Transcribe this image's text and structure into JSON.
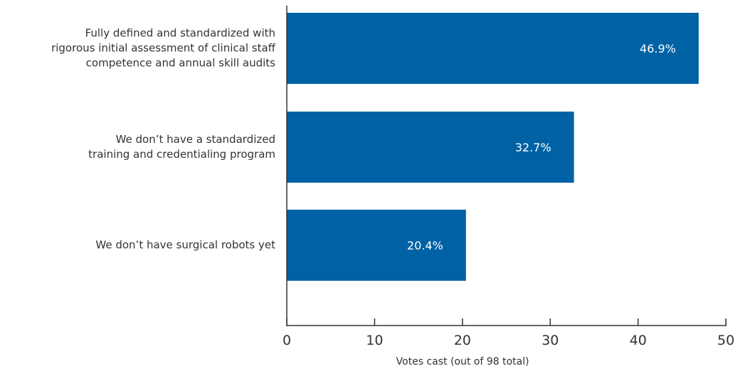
{
  "chart_data": {
    "type": "bar",
    "orientation": "horizontal",
    "categories": [
      "Fully defined and standardized with\nrigorous initial assessment of clinical staff\ncompetence and annual skill audits",
      "We don’t have a standardized\ntraining and credentialing program",
      "We don’t have surgical robots yet"
    ],
    "values": [
      46.9,
      32.7,
      20.4
    ],
    "data_labels": [
      "46.9%",
      "32.7%",
      "20.4%"
    ],
    "xlabel": "Votes cast (out of 98 total)",
    "xlim": [
      0,
      50
    ],
    "xticks": [
      0,
      10,
      20,
      30,
      40,
      50
    ],
    "grid": false,
    "legend": "none",
    "colors": {
      "bar": "#0062A4",
      "bar_label": "#ffffff",
      "axis": "#333333",
      "text": "#333333"
    }
  }
}
